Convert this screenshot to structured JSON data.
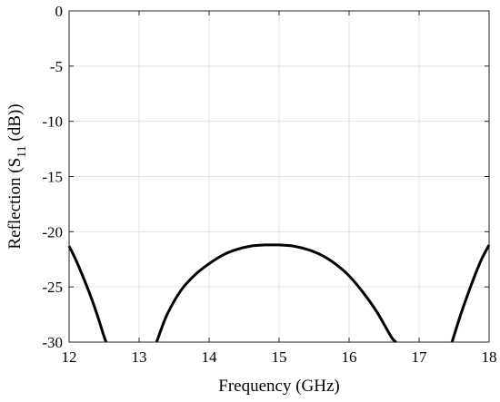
{
  "chart_data": {
    "type": "line",
    "title": "",
    "xlabel": "Frequency (GHz)",
    "ylabel": {
      "prefix": "Reflection (S",
      "subscript": "11",
      "suffix": " (dB))"
    },
    "xlim": [
      12,
      18
    ],
    "ylim": [
      -30,
      0
    ],
    "xticks": [
      "12",
      "13",
      "14",
      "15",
      "16",
      "17",
      "18"
    ],
    "yticks": [
      "0",
      "-5",
      "-10",
      "-15",
      "-20",
      "-25",
      "-30"
    ],
    "grid": true,
    "color": "#000000",
    "series": [
      {
        "segments": [
          {
            "x": [
              12.0,
              12.1,
              12.2,
              12.3,
              12.4,
              12.5,
              12.53
            ],
            "y": [
              -21.3,
              -22.6,
              -24.1,
              -25.7,
              -27.5,
              -29.5,
              -30.0
            ]
          },
          {
            "x": [
              13.25,
              13.4,
              13.6,
              13.8,
              14.0,
              14.2,
              14.4,
              14.6,
              14.8,
              14.9,
              15.0,
              15.2,
              15.4,
              15.6,
              15.8,
              16.0,
              16.2,
              16.4,
              16.6,
              16.67
            ],
            "y": [
              -30.0,
              -27.5,
              -25.3,
              -23.9,
              -22.9,
              -22.1,
              -21.6,
              -21.3,
              -21.2,
              -21.2,
              -21.2,
              -21.3,
              -21.6,
              -22.1,
              -22.9,
              -24.0,
              -25.5,
              -27.3,
              -29.5,
              -30.0
            ],
            "note": ""
          },
          {
            "x": [
              17.47,
              17.6,
              17.7,
              17.8,
              17.9,
              18.0
            ],
            "y": [
              -30.0,
              -27.4,
              -25.6,
              -23.9,
              -22.4,
              -21.2
            ]
          }
        ]
      }
    ]
  }
}
